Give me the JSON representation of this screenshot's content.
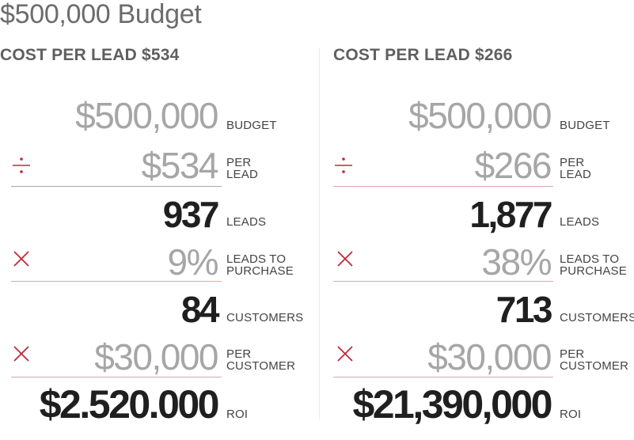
{
  "title": "$500,000 Budget",
  "accent_color": "#c0283a",
  "columns": [
    {
      "heading": "COST PER LEAD $534",
      "budget": {
        "value": "$500,000",
        "label": "BUDGET"
      },
      "per_lead": {
        "value": "$534",
        "label_line1": "PER",
        "label_line2": "LEAD"
      },
      "leads": {
        "value": "937",
        "label": "LEADS"
      },
      "rate": {
        "value": "9%",
        "label_line1": "LEADS TO",
        "label_line2": "PURCHASE"
      },
      "customers": {
        "value": "84",
        "label": "CUSTOMERS"
      },
      "per_customer": {
        "value": "$30,000",
        "label_line1": "PER",
        "label_line2": "CUSTOMER"
      },
      "roi": {
        "value": "$2.520.000",
        "label": "ROI"
      }
    },
    {
      "heading": "COST PER LEAD $266",
      "budget": {
        "value": "$500,000",
        "label": "BUDGET"
      },
      "per_lead": {
        "value": "$266",
        "label_line1": "PER",
        "label_line2": "LEAD"
      },
      "leads": {
        "value": "1,877",
        "label": "LEADS"
      },
      "rate": {
        "value": "38%",
        "label_line1": "LEADS TO",
        "label_line2": "PURCHASE"
      },
      "customers": {
        "value": "713",
        "label": "CUSTOMERS"
      },
      "per_customer": {
        "value": "$30,000",
        "label_line1": "PER",
        "label_line2": "CUSTOMER"
      },
      "roi": {
        "value": "$21,390,000",
        "label": "ROI"
      }
    }
  ]
}
